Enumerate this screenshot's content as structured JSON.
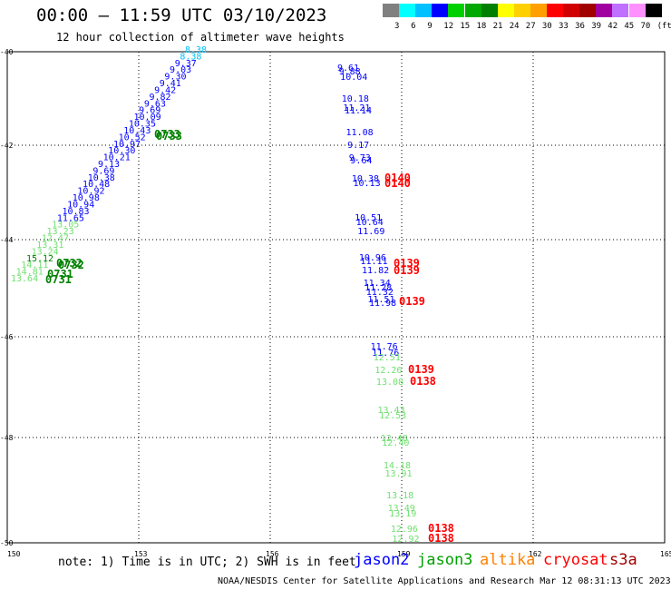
{
  "header": {
    "title": "00:00 – 11:59 UTC 03/10/2023",
    "subtitle": "12 hour collection of altimeter wave heights"
  },
  "color_scale": {
    "colors": [
      "#808080",
      "#00ffff",
      "#00c0ff",
      "#0000ff",
      "#00d000",
      "#00a800",
      "#008000",
      "#ffff00",
      "#ffd000",
      "#ffa000",
      "#ff0000",
      "#d00000",
      "#a00000",
      "#a000a0",
      "#c070ff",
      "#ff90ff",
      "#000000"
    ],
    "labels": [
      "3",
      "6",
      "9",
      "12",
      "15",
      "18",
      "21",
      "24",
      "27",
      "30",
      "33",
      "36",
      "39",
      "42",
      "45",
      "70",
      "(ft)"
    ]
  },
  "axes": {
    "x_ticks": [
      "150",
      "153",
      "156",
      "159",
      "162",
      "165"
    ],
    "y_ticks": [
      "-40",
      "-42",
      "-44",
      "-46",
      "-48",
      "-50"
    ]
  },
  "footer": {
    "note": "note: 1) Time is in UTC; 2) SWH is in feet",
    "satellites": [
      {
        "name": "jason2",
        "color": "#0000ff"
      },
      {
        "name": "jason3",
        "color": "#00a000"
      },
      {
        "name": "altika",
        "color": "#ff8000"
      },
      {
        "name": "cryosat",
        "color": "#ff0000"
      },
      {
        "name": "s3a",
        "color": "#a00000"
      }
    ],
    "credit": "NOAA/NESDIS Center for Satellite Applications and Research    Mar 12 08:31:13 UTC 2023"
  },
  "tracks": {
    "diag_swh": {
      "values": [
        "8.38",
        "8.38",
        "9.37",
        "9.03",
        "9.30",
        "9.41",
        "9.42",
        "9.82",
        "9.63",
        "9.69",
        "10.09",
        "10.35",
        "10.43",
        "10.52",
        "10.97",
        "10.30",
        "10.21",
        "9.13",
        "9.69",
        "10.38",
        "10.48",
        "10.92",
        "10.98",
        "10.94",
        "10.83",
        "11.65",
        "13.05",
        "13.23",
        "12.47",
        "13.31",
        "13.24",
        "15.12",
        "14.11",
        "14.81",
        "13.64"
      ],
      "colors": [
        "#00c0ff",
        "#00c0ff",
        "#0000ff",
        "#0000ff",
        "#0000ff",
        "#0000ff",
        "#0000ff",
        "#0000ff",
        "#0000ff",
        "#0000ff",
        "#0000ff",
        "#0000ff",
        "#0000ff",
        "#0000ff",
        "#0000ff",
        "#0000ff",
        "#0000ff",
        "#0000ff",
        "#0000ff",
        "#0000ff",
        "#0000ff",
        "#0000ff",
        "#0000ff",
        "#0000ff",
        "#0000ff",
        "#0000ff",
        "#70e070",
        "#70e070",
        "#70e070",
        "#70e070",
        "#70e070",
        "#008000",
        "#70e070",
        "#70e070",
        "#70e070"
      ]
    },
    "diag_times": {
      "labels": [
        "0733",
        "0733",
        "0732",
        "0732",
        "0731",
        "0731"
      ],
      "color": "#008000"
    },
    "vert_swh": {
      "values": [
        "9.61",
        "9.88",
        "10.04",
        "10.18",
        "11.21",
        "11.14",
        "11.08",
        "9.17",
        "9.73",
        "9.64",
        "10.38",
        "10.13",
        "10.51",
        "10.64",
        "11.69",
        "10.96",
        "11.11",
        "11.82",
        "11.34",
        "11.28",
        "11.32",
        "11.51",
        "11.98",
        "11.76",
        "11.76",
        "12.51",
        "12.26",
        "13.08",
        "13.43",
        "12.53",
        "12.48",
        "12.40",
        "14.18",
        "13.91",
        "13.18",
        "13.49",
        "13.19",
        "12.96",
        "12.92"
      ],
      "colors": [
        "#0000ff",
        "#0000ff",
        "#0000ff",
        "#0000ff",
        "#0000ff",
        "#0000ff",
        "#0000ff",
        "#0000ff",
        "#0000ff",
        "#0000ff",
        "#0000ff",
        "#0000ff",
        "#0000ff",
        "#0000ff",
        "#0000ff",
        "#0000ff",
        "#0000ff",
        "#0000ff",
        "#0000ff",
        "#0000ff",
        "#0000ff",
        "#0000ff",
        "#0000ff",
        "#0000ff",
        "#0000ff",
        "#70e070",
        "#70e070",
        "#70e070",
        "#70e070",
        "#70e070",
        "#70e070",
        "#70e070",
        "#70e070",
        "#70e070",
        "#70e070",
        "#70e070",
        "#70e070",
        "#70e070",
        "#70e070"
      ]
    },
    "vert_times": {
      "labels": [
        "0140",
        "0140",
        "0139",
        "0139",
        "0139",
        "0139",
        "0138",
        "0138",
        "0138"
      ],
      "color": "#ff0000"
    }
  }
}
